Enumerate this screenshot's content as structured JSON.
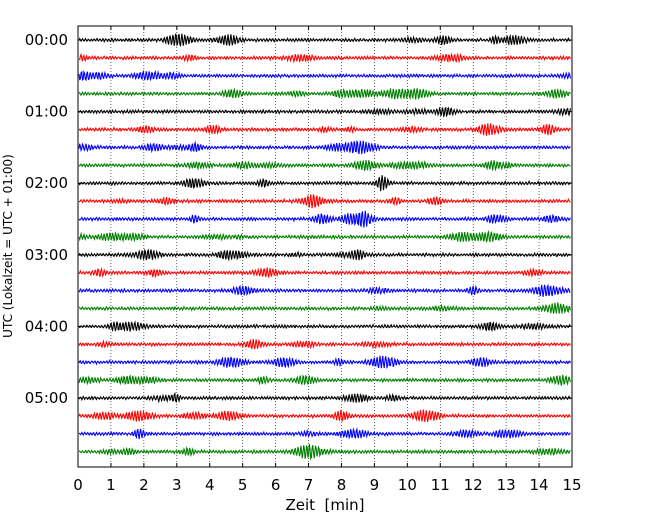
{
  "chart_data": {
    "type": "line",
    "xlabel": "Zeit  [min]",
    "ylabel": "UTC (Lokalzeit = UTC + 01:00)",
    "xlim": [
      0,
      15
    ],
    "x_ticks": [
      "0",
      "1",
      "2",
      "3",
      "4",
      "5",
      "6",
      "7",
      "8",
      "9",
      "10",
      "11",
      "12",
      "13",
      "14",
      "15"
    ],
    "y_tick_labels": [
      "00:00",
      "01:00",
      "02:00",
      "03:00",
      "04:00",
      "05:00"
    ],
    "trace_interval_minutes": 15,
    "trace_count": 24,
    "trace_colors": [
      "#000000",
      "#ff0000",
      "#0000ff",
      "#008000"
    ],
    "grid": {
      "x": true,
      "y": false,
      "style": "dotted"
    }
  }
}
